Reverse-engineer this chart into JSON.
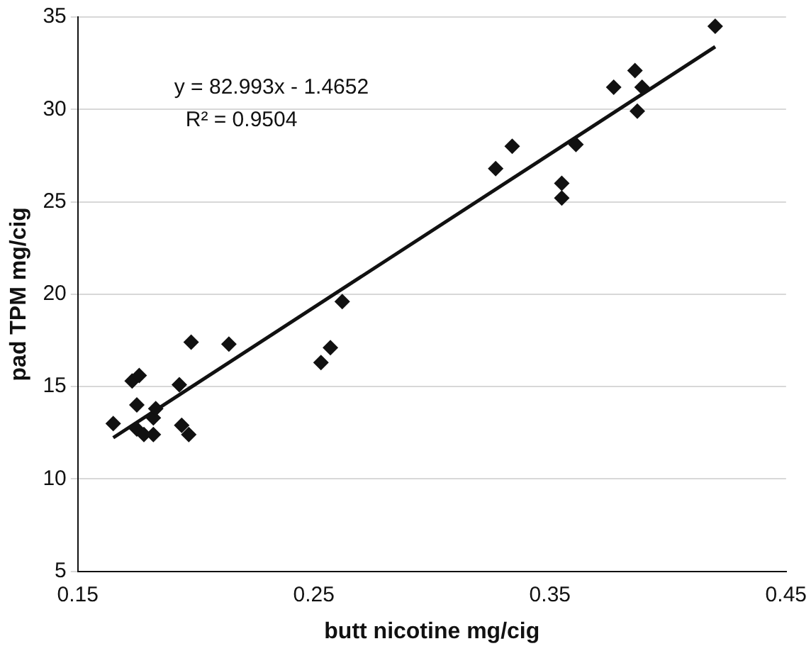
{
  "chart_data": {
    "type": "scatter",
    "xlabel": "butt nicotine mg/cig",
    "ylabel": "pad TPM mg/cig",
    "annotations": [
      "y = 82.993x - 1.4652",
      "R² = 0.9504"
    ],
    "series": [
      {
        "type": "scatter",
        "color": "#111111",
        "marker": "diamond",
        "x": [
          0.165,
          0.173,
          0.176,
          0.175,
          0.175,
          0.178,
          0.182,
          0.183,
          0.182,
          0.193,
          0.194,
          0.196,
          0.197,
          0.198,
          0.214,
          0.253,
          0.257,
          0.262,
          0.327,
          0.334,
          0.355,
          0.355,
          0.361,
          0.377,
          0.386,
          0.387,
          0.389,
          0.42
        ],
        "values": [
          13.0,
          15.3,
          15.6,
          14.0,
          12.7,
          12.4,
          13.3,
          13.8,
          12.4,
          15.1,
          12.9,
          null,
          12.4,
          17.4,
          17.3,
          16.3,
          17.1,
          19.6,
          26.8,
          28.0,
          26.0,
          25.2,
          28.1,
          31.2,
          32.1,
          29.9,
          31.2,
          34.5
        ]
      },
      {
        "type": "line",
        "color": "#111111",
        "marker": "none",
        "x": [
          0.165,
          0.42
        ],
        "values": [
          12.23,
          33.39
        ]
      }
    ],
    "xlim": [
      0.15,
      0.45
    ],
    "xticks": [
      0.15,
      0.25,
      0.35,
      0.45
    ],
    "ylim": [
      5,
      35
    ],
    "yticks": [
      5,
      10,
      15,
      20,
      25,
      30,
      35
    ],
    "grid": "y",
    "legend": false
  }
}
